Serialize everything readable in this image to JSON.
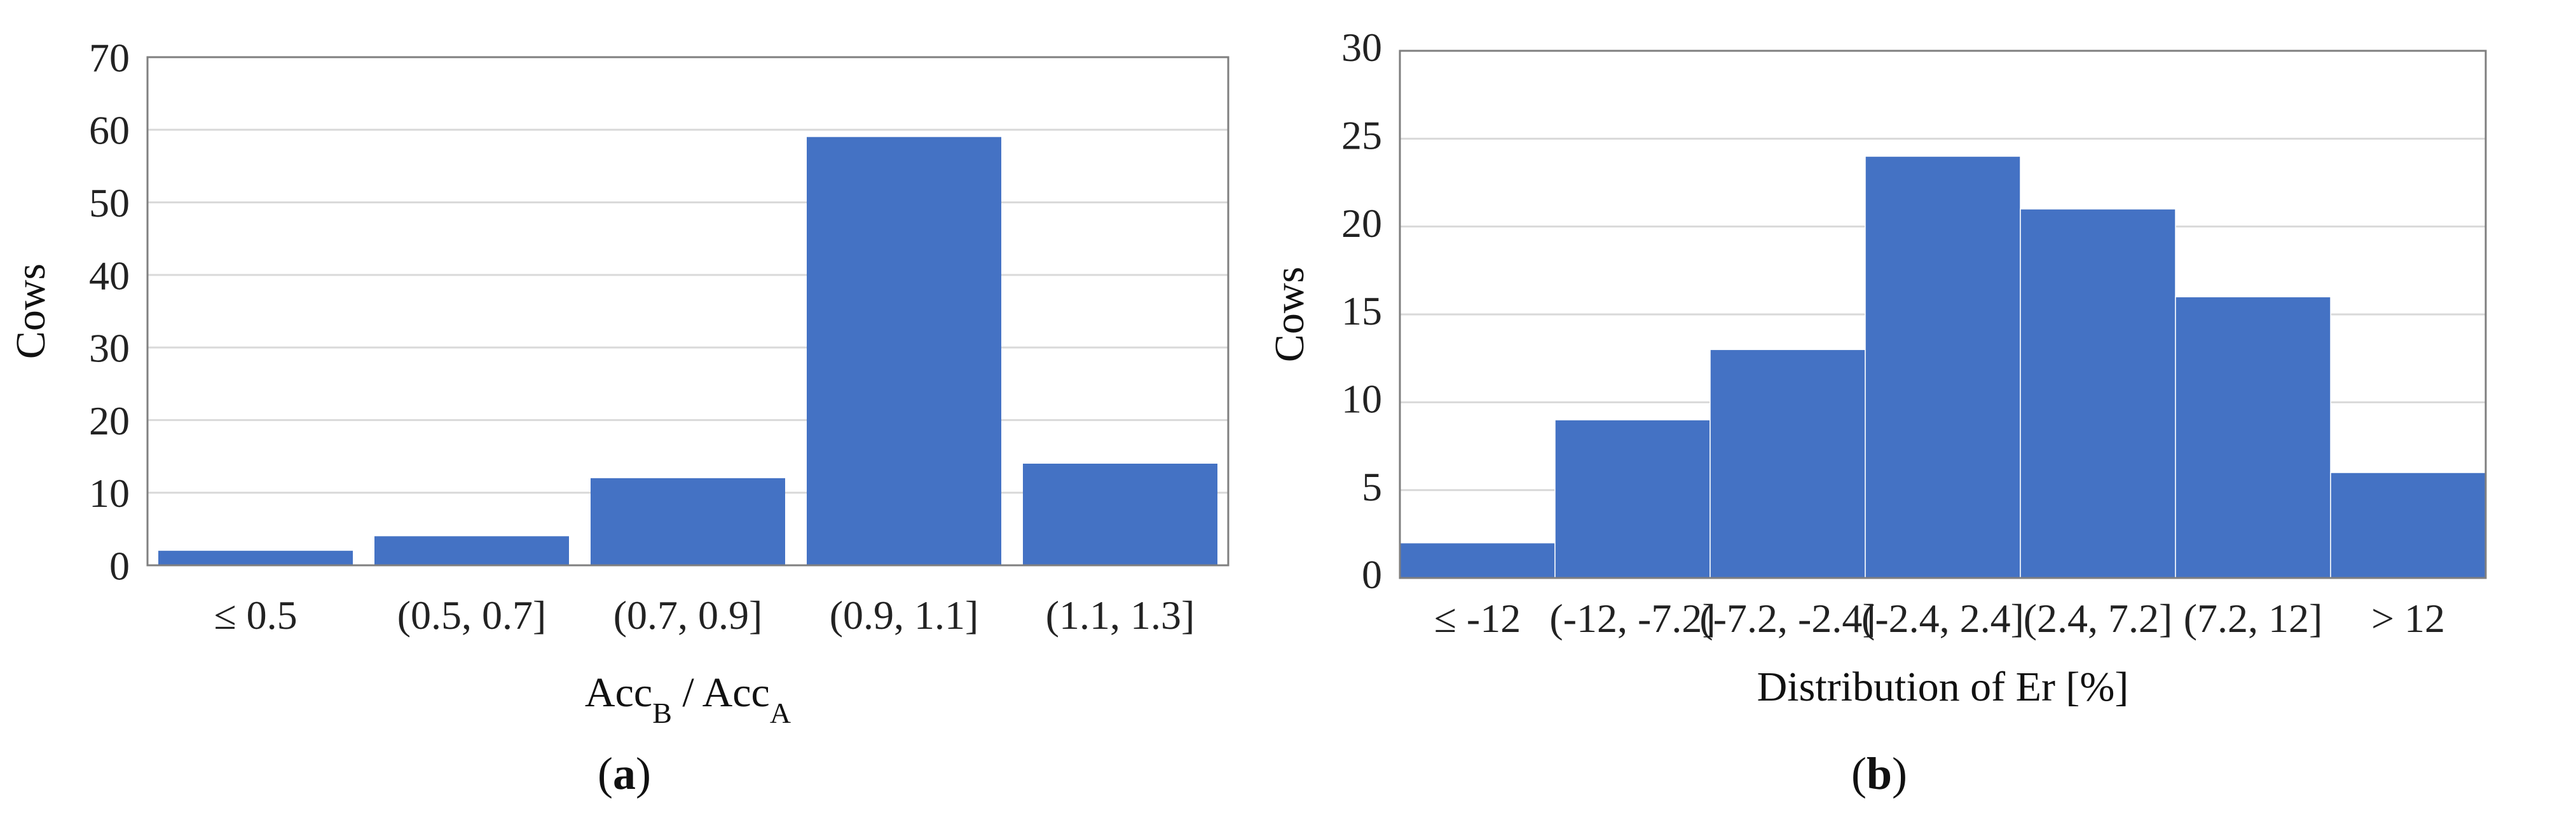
{
  "chart_data": [
    {
      "type": "bar",
      "panel_label": "(a)",
      "categories": [
        "≤ 0.5",
        "(0.5, 0.7]",
        "(0.7, 0.9]",
        "(0.9, 1.1]",
        "(1.1, 1.3]"
      ],
      "values": [
        2,
        4,
        12,
        59,
        14
      ],
      "ylabel": "Cows",
      "xlabel": {
        "base1": "Acc",
        "sub1": "B",
        "sep": " / ",
        "base2": "Acc",
        "sub2": "A"
      },
      "ylim": [
        0,
        70
      ],
      "yticks": [
        0,
        10,
        20,
        30,
        40,
        50,
        60,
        70
      ],
      "grid": true,
      "bar_color": "#4472C4"
    },
    {
      "type": "bar",
      "panel_label": "(b)",
      "categories": [
        "≤ -12",
        "(-12, -7.2]",
        "(-7.2, -2.4]",
        "(-2.4, 2.4]",
        "(2.4, 7.2]",
        "(7.2, 12]",
        "> 12"
      ],
      "values": [
        2,
        9,
        13,
        24,
        21,
        16,
        6
      ],
      "ylabel": "Cows",
      "xlabel": "Distribution of Er [%]",
      "ylim": [
        0,
        30
      ],
      "yticks": [
        0,
        5,
        10,
        15,
        20,
        25,
        30
      ],
      "grid": true,
      "bar_color": "#4472C4"
    }
  ]
}
